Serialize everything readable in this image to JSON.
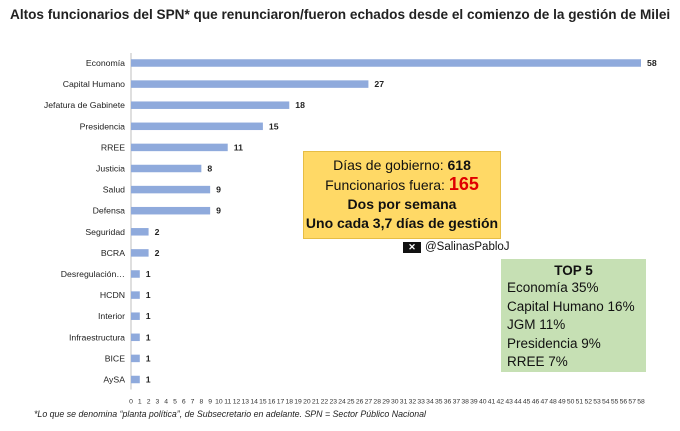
{
  "title": "Altos funcionarios del SPN* que renunciaron/fueron echados desde el comienzo de la gestión de Milei",
  "chart_data": {
    "type": "bar",
    "orientation": "horizontal",
    "categories": [
      "Economía",
      "Capital Humano",
      "Jefatura de Gabinete",
      "Presidencia",
      "RREE",
      "Justicia",
      "Salud",
      "Defensa",
      "Seguridad",
      "BCRA",
      "Desregulación…",
      "HCDN",
      "Interior",
      "Infraestructura",
      "BICE",
      "AySA"
    ],
    "values": [
      58,
      27,
      18,
      15,
      11,
      8,
      9,
      9,
      2,
      2,
      1,
      1,
      1,
      1,
      1,
      1
    ],
    "xlim": [
      0,
      58
    ],
    "xticks": [
      0,
      1,
      2,
      3,
      4,
      5,
      6,
      7,
      8,
      9,
      10,
      11,
      12,
      13,
      14,
      15,
      16,
      17,
      18,
      19,
      20,
      21,
      22,
      23,
      24,
      25,
      26,
      27,
      28,
      29,
      30,
      31,
      32,
      33,
      34,
      35,
      36,
      37,
      38,
      39,
      40,
      41,
      42,
      43,
      44,
      45,
      46,
      47,
      48,
      49,
      50,
      51,
      52,
      53,
      54,
      55,
      56,
      57,
      58
    ],
    "bar_color": "#8faadc",
    "grid": false,
    "data_labels": true
  },
  "summary_box": {
    "dias_label": "Días de gobierno: ",
    "dias_value": "618",
    "func_label": "Funcionarios fuera: ",
    "func_value": "165",
    "line3": "Dos por semana",
    "line4": "Uno cada 3,7 días de gestión",
    "bg_color": "#ffd966",
    "highlight_color": "#e00000"
  },
  "twitter": {
    "icon": "x-logo-icon",
    "handle": "@SalinasPabloJ"
  },
  "top5": {
    "heading": "TOP 5",
    "items": [
      "Economía 35%",
      "Capital Humano 16%",
      "JGM 11%",
      "Presidencia 9%",
      "RREE 7%"
    ],
    "bg_color": "#c6e0b4"
  },
  "footnote": "*Lo que se denomina “planta política”, de Subsecretario en adelante. SPN = Sector Público Nacional"
}
